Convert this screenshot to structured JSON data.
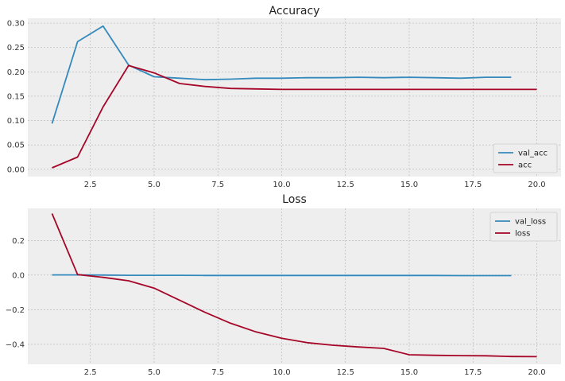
{
  "chart_data": [
    {
      "type": "line",
      "title": "Accuracy",
      "xlabel": "",
      "ylabel": "",
      "xlim": [
        0.05,
        20.95
      ],
      "ylim": [
        -0.015,
        0.31
      ],
      "xticks": [
        2.5,
        5.0,
        7.5,
        10.0,
        12.5,
        15.0,
        17.5,
        20.0
      ],
      "xtick_labels": [
        "2.5",
        "5.0",
        "7.5",
        "10.0",
        "12.5",
        "15.0",
        "17.5",
        "20.0"
      ],
      "yticks": [
        0.0,
        0.05,
        0.1,
        0.15,
        0.2,
        0.25,
        0.3
      ],
      "ytick_labels": [
        "0.00",
        "0.05",
        "0.10",
        "0.15",
        "0.20",
        "0.25",
        "0.30"
      ],
      "grid": true,
      "legend": "lower-right",
      "series": [
        {
          "name": "val_acc",
          "color": "#348abd",
          "x": [
            1,
            2,
            3,
            4,
            5,
            6,
            7,
            8,
            9,
            10,
            11,
            12,
            13,
            14,
            15,
            16,
            17,
            18,
            19
          ],
          "y": [
            0.094,
            0.262,
            0.294,
            0.214,
            0.19,
            0.187,
            0.184,
            0.185,
            0.187,
            0.187,
            0.188,
            0.188,
            0.189,
            0.188,
            0.189,
            0.188,
            0.187,
            0.189,
            0.189
          ]
        },
        {
          "name": "acc",
          "color": "#a60628",
          "x": [
            1,
            2,
            3,
            4,
            5,
            6,
            7,
            8,
            9,
            10,
            11,
            12,
            13,
            14,
            15,
            16,
            17,
            18,
            19,
            20
          ],
          "y": [
            0.003,
            0.025,
            0.128,
            0.213,
            0.198,
            0.176,
            0.17,
            0.166,
            0.165,
            0.164,
            0.164,
            0.164,
            0.164,
            0.164,
            0.164,
            0.164,
            0.164,
            0.164,
            0.164,
            0.164
          ]
        }
      ]
    },
    {
      "type": "line",
      "title": "Loss",
      "xlabel": "",
      "ylabel": "",
      "xlim": [
        0.05,
        20.95
      ],
      "ylim": [
        -0.515,
        0.385
      ],
      "xticks": [
        2.5,
        5.0,
        7.5,
        10.0,
        12.5,
        15.0,
        17.5,
        20.0
      ],
      "xtick_labels": [
        "2.5",
        "5.0",
        "7.5",
        "10.0",
        "12.5",
        "15.0",
        "17.5",
        "20.0"
      ],
      "yticks": [
        -0.4,
        -0.2,
        0.0,
        0.2
      ],
      "ytick_labels": [
        "−0.4",
        "−0.2",
        "0.0",
        "0.2"
      ],
      "grid": true,
      "legend": "top-right",
      "series": [
        {
          "name": "val_loss",
          "color": "#348abd",
          "x": [
            1,
            2,
            3,
            4,
            5,
            6,
            7,
            8,
            9,
            10,
            11,
            12,
            13,
            14,
            15,
            16,
            17,
            18,
            19
          ],
          "y": [
            0.001,
            0.001,
            0.0,
            -0.001,
            -0.001,
            -0.001,
            -0.002,
            -0.002,
            -0.002,
            -0.002,
            -0.002,
            -0.002,
            -0.002,
            -0.002,
            -0.002,
            -0.002,
            -0.003,
            -0.003,
            -0.003
          ]
        },
        {
          "name": "loss",
          "color": "#a60628",
          "x": [
            1,
            2,
            3,
            4,
            5,
            6,
            7,
            8,
            9,
            10,
            11,
            12,
            13,
            14,
            15,
            16,
            17,
            18,
            19,
            20
          ],
          "y": [
            0.355,
            0.003,
            -0.013,
            -0.033,
            -0.075,
            -0.145,
            -0.215,
            -0.278,
            -0.328,
            -0.365,
            -0.39,
            -0.405,
            -0.415,
            -0.423,
            -0.46,
            -0.463,
            -0.465,
            -0.466,
            -0.47,
            -0.471
          ]
        }
      ]
    }
  ]
}
